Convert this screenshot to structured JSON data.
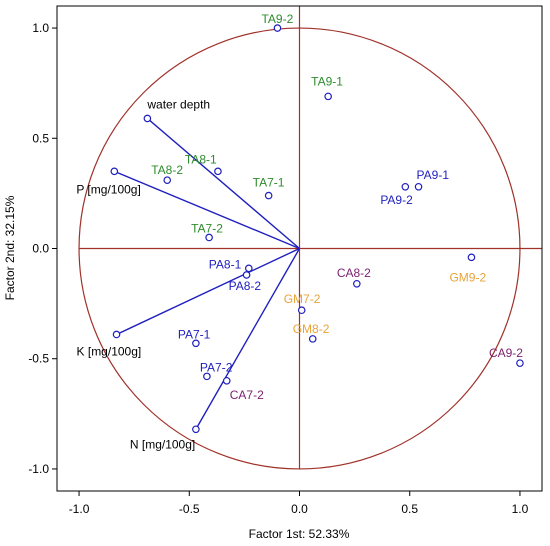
{
  "chart_data": {
    "type": "scatter",
    "title": "",
    "xlabel": "Factor 1st: 52.33%",
    "ylabel": "Factor 2nd: 32.15%",
    "xlim": [
      -1.1,
      1.1
    ],
    "ylim": [
      -1.1,
      1.1
    ],
    "xticks": [
      -1.0,
      -0.5,
      0.0,
      0.5,
      1.0
    ],
    "yticks": [
      -1.0,
      -0.5,
      0.0,
      0.5,
      1.0
    ],
    "xtick_labels": [
      "-1.0",
      "-0.5",
      "0.0",
      "0.5",
      "1.0"
    ],
    "ytick_labels": [
      "-1.0",
      "-0.5",
      "0.0",
      "0.5",
      "1.0"
    ],
    "grid": false,
    "unit_circle": true,
    "colors": {
      "circle": "#a0322a",
      "zero_lines": "#a0322a",
      "vectors": "#1f1fbf",
      "markers": "#1f1fbf",
      "variable_labels": "#000000",
      "TA": "#2e8b2e",
      "PA": "#1f1fbf",
      "GM": "#e8a33a",
      "CA": "#7a1f6e"
    },
    "vectors": [
      {
        "label": "water depth",
        "x": -0.69,
        "y": 0.59
      },
      {
        "label": "P [mg/100g]",
        "x": -0.84,
        "y": 0.35
      },
      {
        "label": "K [mg/100g]",
        "x": -0.83,
        "y": -0.39
      },
      {
        "label": "N [mg/100g]",
        "x": -0.47,
        "y": -0.82
      }
    ],
    "points": [
      {
        "label": "TA9-2",
        "group": "TA",
        "x": -0.1,
        "y": 1.0
      },
      {
        "label": "TA9-1",
        "group": "TA",
        "x": 0.13,
        "y": 0.69
      },
      {
        "label": "TA8-1",
        "group": "TA",
        "x": -0.37,
        "y": 0.35
      },
      {
        "label": "TA8-2",
        "group": "TA",
        "x": -0.6,
        "y": 0.31
      },
      {
        "label": "TA7-1",
        "group": "TA",
        "x": -0.14,
        "y": 0.24
      },
      {
        "label": "TA7-2",
        "group": "TA",
        "x": -0.41,
        "y": 0.05
      },
      {
        "label": "PA9-1",
        "group": "PA",
        "x": 0.54,
        "y": 0.28
      },
      {
        "label": "PA9-2",
        "group": "PA",
        "x": 0.48,
        "y": 0.28
      },
      {
        "label": "PA8-1",
        "group": "PA",
        "x": -0.23,
        "y": -0.09
      },
      {
        "label": "PA8-2",
        "group": "PA",
        "x": -0.24,
        "y": -0.12
      },
      {
        "label": "PA7-1",
        "group": "PA",
        "x": -0.47,
        "y": -0.43
      },
      {
        "label": "PA7-2",
        "group": "PA",
        "x": -0.42,
        "y": -0.58
      },
      {
        "label": "GM9-2",
        "group": "GM",
        "x": 0.78,
        "y": -0.04
      },
      {
        "label": "GM7-2",
        "group": "GM",
        "x": 0.01,
        "y": -0.28
      },
      {
        "label": "GM8-2",
        "group": "GM",
        "x": 0.06,
        "y": -0.41
      },
      {
        "label": "CA8-2",
        "group": "CA",
        "x": 0.26,
        "y": -0.16
      },
      {
        "label": "CA7-2",
        "group": "CA",
        "x": -0.33,
        "y": -0.6
      },
      {
        "label": "CA9-2",
        "group": "CA",
        "x": 1.0,
        "y": -0.52
      }
    ]
  }
}
